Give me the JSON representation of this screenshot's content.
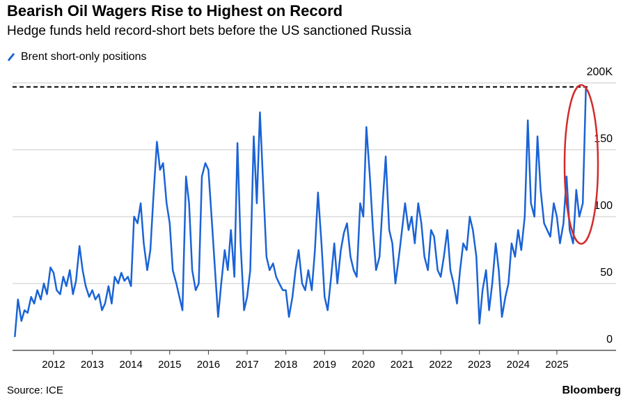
{
  "chart_data": {
    "type": "line",
    "title": "Bearish Oil Wagers Rise to Highest on Record",
    "subtitle": "Hedge funds held record-short bets before the US sanctioned Russia",
    "source": "Source: ICE",
    "brand": "Bloomberg",
    "x": [
      2011,
      2011.08,
      2011.17,
      2011.25,
      2011.33,
      2011.42,
      2011.5,
      2011.58,
      2011.67,
      2011.75,
      2011.83,
      2011.92,
      2012,
      2012.08,
      2012.17,
      2012.25,
      2012.33,
      2012.42,
      2012.5,
      2012.58,
      2012.67,
      2012.75,
      2012.83,
      2012.92,
      2013,
      2013.08,
      2013.17,
      2013.25,
      2013.33,
      2013.42,
      2013.5,
      2013.58,
      2013.67,
      2013.75,
      2013.83,
      2013.92,
      2014,
      2014.08,
      2014.17,
      2014.25,
      2014.33,
      2014.42,
      2014.5,
      2014.58,
      2014.67,
      2014.75,
      2014.83,
      2014.92,
      2015,
      2015.08,
      2015.17,
      2015.25,
      2015.33,
      2015.42,
      2015.5,
      2015.58,
      2015.67,
      2015.75,
      2015.83,
      2015.92,
      2016,
      2016.08,
      2016.17,
      2016.25,
      2016.33,
      2016.42,
      2016.5,
      2016.58,
      2016.67,
      2016.75,
      2016.83,
      2016.92,
      2017,
      2017.08,
      2017.17,
      2017.25,
      2017.33,
      2017.42,
      2017.5,
      2017.58,
      2017.67,
      2017.75,
      2017.83,
      2017.92,
      2018,
      2018.08,
      2018.17,
      2018.25,
      2018.33,
      2018.42,
      2018.5,
      2018.58,
      2018.67,
      2018.75,
      2018.83,
      2018.92,
      2019,
      2019.08,
      2019.17,
      2019.25,
      2019.33,
      2019.42,
      2019.5,
      2019.58,
      2019.67,
      2019.75,
      2019.83,
      2019.92,
      2020,
      2020.08,
      2020.17,
      2020.25,
      2020.33,
      2020.42,
      2020.5,
      2020.58,
      2020.67,
      2020.75,
      2020.83,
      2020.92,
      2021,
      2021.08,
      2021.17,
      2021.25,
      2021.33,
      2021.42,
      2021.5,
      2021.58,
      2021.67,
      2021.75,
      2021.83,
      2021.92,
      2022,
      2022.08,
      2022.17,
      2022.25,
      2022.33,
      2022.42,
      2022.5,
      2022.58,
      2022.67,
      2022.75,
      2022.83,
      2022.92,
      2023,
      2023.08,
      2023.17,
      2023.25,
      2023.33,
      2023.42,
      2023.5,
      2023.58,
      2023.67,
      2023.75,
      2023.83,
      2023.92,
      2024,
      2024.08,
      2024.17,
      2024.25,
      2024.33,
      2024.42,
      2024.5,
      2024.58,
      2024.67,
      2024.75,
      2024.83,
      2024.92,
      2025,
      2025.08,
      2025.17,
      2025.25,
      2025.33,
      2025.42,
      2025.5,
      2025.58,
      2025.67,
      2025.75
    ],
    "series": [
      {
        "name": "Brent short-only positions",
        "color": "#1a63d6",
        "values": [
          10,
          38,
          22,
          30,
          28,
          40,
          35,
          45,
          38,
          50,
          42,
          62,
          58,
          45,
          42,
          55,
          48,
          60,
          42,
          52,
          78,
          60,
          48,
          40,
          45,
          38,
          42,
          30,
          35,
          48,
          35,
          55,
          50,
          58,
          52,
          55,
          48,
          100,
          95,
          110,
          80,
          60,
          75,
          115,
          156,
          135,
          140,
          110,
          95,
          60,
          50,
          40,
          30,
          130,
          110,
          60,
          45,
          50,
          130,
          140,
          135,
          100,
          60,
          25,
          50,
          75,
          60,
          90,
          55,
          155,
          80,
          30,
          40,
          60,
          160,
          110,
          178,
          120,
          70,
          60,
          65,
          55,
          50,
          45,
          45,
          25,
          40,
          60,
          75,
          50,
          45,
          60,
          45,
          75,
          118,
          80,
          40,
          30,
          55,
          80,
          50,
          75,
          88,
          95,
          70,
          60,
          55,
          110,
          100,
          167,
          130,
          90,
          60,
          70,
          110,
          145,
          90,
          80,
          50,
          70,
          90,
          110,
          90,
          100,
          80,
          110,
          95,
          70,
          60,
          90,
          85,
          60,
          55,
          70,
          90,
          60,
          50,
          35,
          60,
          80,
          75,
          100,
          90,
          70,
          20,
          45,
          60,
          30,
          50,
          80,
          60,
          25,
          40,
          50,
          80,
          70,
          90,
          75,
          100,
          172,
          110,
          100,
          160,
          120,
          95,
          90,
          85,
          110,
          100,
          80,
          95,
          130,
          90,
          80,
          120,
          100,
          110,
          197
        ]
      }
    ],
    "reference_line": 197,
    "xlim": [
      2010.94,
      2025.9
    ],
    "xticks": [
      2012,
      2013,
      2014,
      2015,
      2016,
      2017,
      2018,
      2019,
      2020,
      2021,
      2022,
      2023,
      2024,
      2025
    ],
    "ylim": [
      0,
      200
    ],
    "yticks": [
      0,
      50,
      100,
      150,
      {
        "value": 200,
        "label": "200K"
      }
    ],
    "grid": true
  }
}
